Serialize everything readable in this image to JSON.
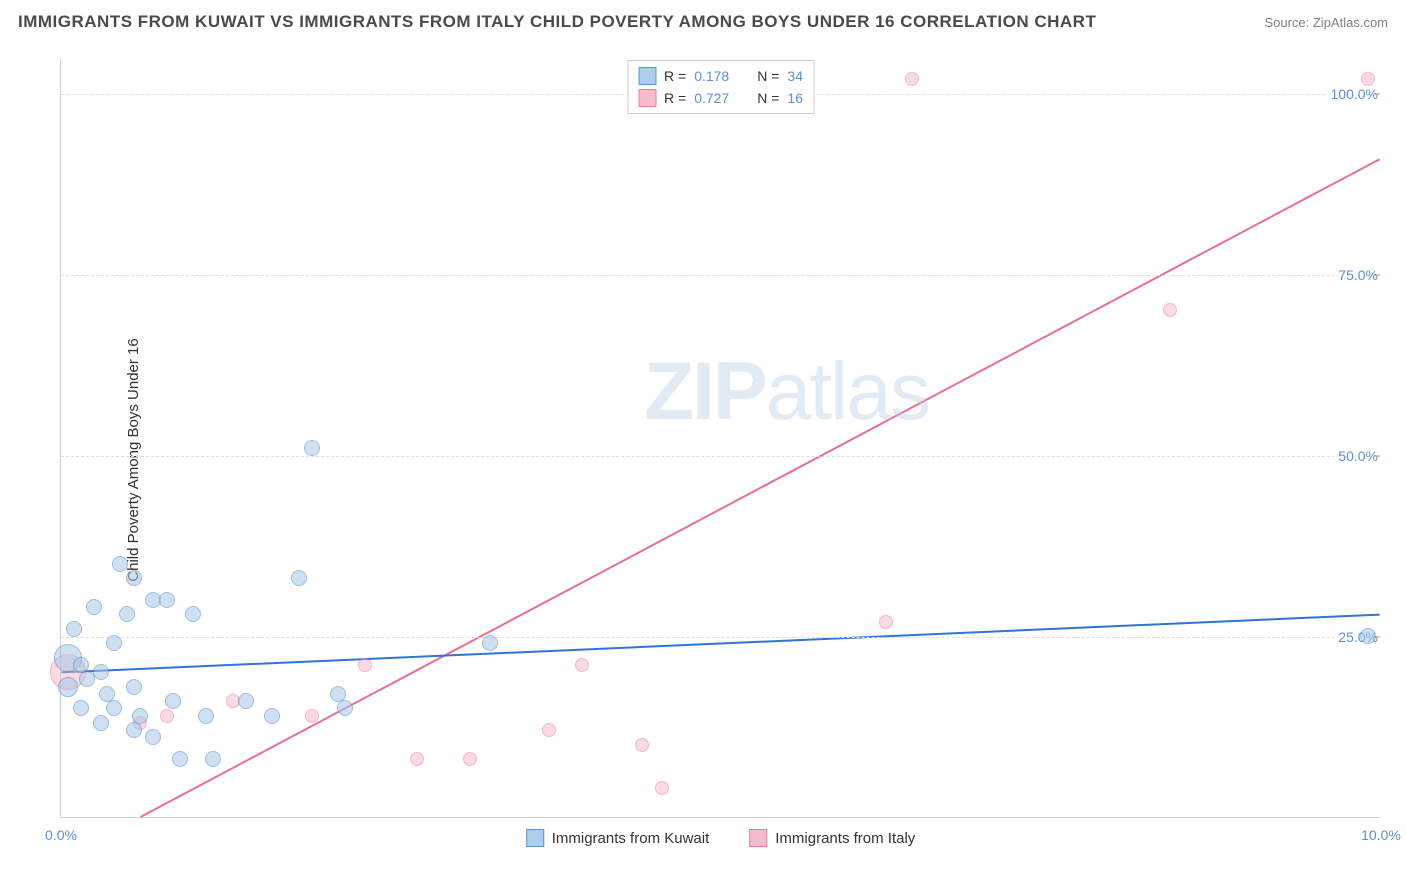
{
  "title": "IMMIGRANTS FROM KUWAIT VS IMMIGRANTS FROM ITALY CHILD POVERTY AMONG BOYS UNDER 16 CORRELATION CHART",
  "source_label": "Source: ZipAtlas.com",
  "ylabel": "Child Poverty Among Boys Under 16",
  "watermark_a": "ZIP",
  "watermark_b": "atlas",
  "chart": {
    "type": "scatter",
    "background_color": "#ffffff",
    "grid_color": "#dcdcdc",
    "border_color": "#d0d0d0",
    "xlim": [
      0,
      10
    ],
    "ylim": [
      0,
      105
    ],
    "xtick_values": [
      0,
      10
    ],
    "xtick_labels": [
      "0.0%",
      "10.0%"
    ],
    "ytick_values": [
      25,
      50,
      75,
      100
    ],
    "ytick_labels": [
      "25.0%",
      "50.0%",
      "75.0%",
      "100.0%"
    ],
    "tick_color": "#5b8fd6",
    "tick_fontsize": 14
  },
  "series": {
    "kuwait": {
      "label": "Immigrants from Kuwait",
      "fill": "#a7c7e7",
      "fill_opacity": 0.55,
      "stroke": "#4a8ac9",
      "line_color": "#2e75d6",
      "line_width": 2,
      "marker_radius": 8,
      "R_label": "R  =",
      "R": "0.178",
      "N_label": "N  =",
      "N": "34",
      "trend": {
        "x1": 0,
        "y1": 20,
        "x2": 10,
        "y2": 28
      },
      "points": [
        {
          "x": 0.05,
          "y": 22,
          "r": 14
        },
        {
          "x": 0.05,
          "y": 18,
          "r": 10
        },
        {
          "x": 0.1,
          "y": 26,
          "r": 8
        },
        {
          "x": 0.15,
          "y": 21,
          "r": 8
        },
        {
          "x": 0.15,
          "y": 15,
          "r": 8
        },
        {
          "x": 0.2,
          "y": 19,
          "r": 8
        },
        {
          "x": 0.25,
          "y": 29,
          "r": 8
        },
        {
          "x": 0.3,
          "y": 13,
          "r": 8
        },
        {
          "x": 0.3,
          "y": 20,
          "r": 8
        },
        {
          "x": 0.35,
          "y": 17,
          "r": 8
        },
        {
          "x": 0.4,
          "y": 24,
          "r": 8
        },
        {
          "x": 0.4,
          "y": 15,
          "r": 8
        },
        {
          "x": 0.45,
          "y": 35,
          "r": 8
        },
        {
          "x": 0.5,
          "y": 28,
          "r": 8
        },
        {
          "x": 0.55,
          "y": 12,
          "r": 8
        },
        {
          "x": 0.55,
          "y": 18,
          "r": 8
        },
        {
          "x": 0.55,
          "y": 33,
          "r": 8
        },
        {
          "x": 0.6,
          "y": 14,
          "r": 8
        },
        {
          "x": 0.7,
          "y": 30,
          "r": 8
        },
        {
          "x": 0.7,
          "y": 11,
          "r": 8
        },
        {
          "x": 0.8,
          "y": 30,
          "r": 8
        },
        {
          "x": 0.85,
          "y": 16,
          "r": 8
        },
        {
          "x": 0.9,
          "y": 8,
          "r": 8
        },
        {
          "x": 1.0,
          "y": 28,
          "r": 8
        },
        {
          "x": 1.1,
          "y": 14,
          "r": 8
        },
        {
          "x": 1.15,
          "y": 8,
          "r": 8
        },
        {
          "x": 1.4,
          "y": 16,
          "r": 8
        },
        {
          "x": 1.6,
          "y": 14,
          "r": 8
        },
        {
          "x": 1.8,
          "y": 33,
          "r": 8
        },
        {
          "x": 1.9,
          "y": 51,
          "r": 8
        },
        {
          "x": 2.1,
          "y": 17,
          "r": 8
        },
        {
          "x": 2.15,
          "y": 15,
          "r": 8
        },
        {
          "x": 3.25,
          "y": 24,
          "r": 8
        },
        {
          "x": 9.9,
          "y": 25,
          "r": 8
        }
      ]
    },
    "italy": {
      "label": "Immigrants from Italy",
      "fill": "#f4b6c7",
      "fill_opacity": 0.5,
      "stroke": "#e86f94",
      "line_color": "#e86f94",
      "line_width": 2,
      "marker_radius": 7,
      "R_label": "R  =",
      "R": "0.727",
      "N_label": "N  =",
      "N": "16",
      "trend": {
        "x1": 0.6,
        "y1": 0,
        "x2": 10,
        "y2": 91
      },
      "points": [
        {
          "x": 0.05,
          "y": 20,
          "r": 18
        },
        {
          "x": 0.6,
          "y": 13,
          "r": 7
        },
        {
          "x": 0.8,
          "y": 14,
          "r": 7
        },
        {
          "x": 1.3,
          "y": 16,
          "r": 7
        },
        {
          "x": 1.9,
          "y": 14,
          "r": 7
        },
        {
          "x": 2.3,
          "y": 21,
          "r": 7
        },
        {
          "x": 2.7,
          "y": 8,
          "r": 7
        },
        {
          "x": 3.1,
          "y": 8,
          "r": 7
        },
        {
          "x": 3.7,
          "y": 12,
          "r": 7
        },
        {
          "x": 3.95,
          "y": 21,
          "r": 7
        },
        {
          "x": 4.4,
          "y": 10,
          "r": 7
        },
        {
          "x": 4.55,
          "y": 4,
          "r": 7
        },
        {
          "x": 6.25,
          "y": 27,
          "r": 7
        },
        {
          "x": 6.45,
          "y": 102,
          "r": 7
        },
        {
          "x": 8.4,
          "y": 70,
          "r": 7
        },
        {
          "x": 9.9,
          "y": 102,
          "r": 7
        }
      ]
    }
  }
}
